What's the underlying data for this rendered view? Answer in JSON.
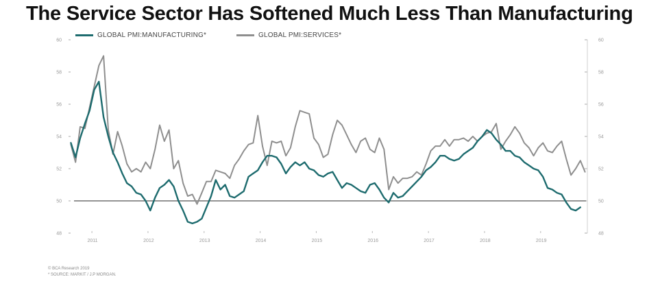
{
  "title": "The Service Sector Has Softened Much Less Than Manufacturing",
  "footer": {
    "copyright": "© BCA Research 2019",
    "source": "* SOURCE: MARKIT / J.P MORGAN."
  },
  "colors": {
    "manufacturing": "#1d6b6e",
    "services": "#8e8e8e",
    "reference_line": "#555555",
    "tick_text": "#999999"
  },
  "chart_data": {
    "type": "line",
    "title": "The Service Sector Has Softened Much Less Than Manufacturing",
    "xlabel": "",
    "ylabel": "",
    "x_range": [
      "2010-08",
      "2019-08"
    ],
    "ylim": [
      48,
      60
    ],
    "y_ticks": [
      48,
      50,
      52,
      54,
      56,
      58,
      60
    ],
    "x_tick_labels": [
      "2011",
      "2012",
      "2013",
      "2014",
      "2015",
      "2016",
      "2017",
      "2018",
      "2019"
    ],
    "reference_line": 50,
    "grid": false,
    "legend_position": "top-left",
    "dual_y_axis": true,
    "series": [
      {
        "name": "GLOBAL PMI:MANUFACTURING*",
        "points": [
          [
            "2010-08",
            53.6
          ],
          [
            "2010-09",
            52.7
          ],
          [
            "2010-10",
            53.9
          ],
          [
            "2010-11",
            54.8
          ],
          [
            "2010-12",
            55.6
          ],
          [
            "2011-01",
            56.9
          ],
          [
            "2011-02",
            57.4
          ],
          [
            "2011-03",
            55.2
          ],
          [
            "2011-04",
            54.0
          ],
          [
            "2011-05",
            53.0
          ],
          [
            "2011-06",
            52.4
          ],
          [
            "2011-07",
            51.7
          ],
          [
            "2011-08",
            51.1
          ],
          [
            "2011-09",
            50.9
          ],
          [
            "2011-10",
            50.5
          ],
          [
            "2011-11",
            50.4
          ],
          [
            "2011-12",
            50.0
          ],
          [
            "2012-01",
            49.4
          ],
          [
            "2012-02",
            50.2
          ],
          [
            "2012-03",
            50.8
          ],
          [
            "2012-04",
            51.0
          ],
          [
            "2012-05",
            51.3
          ],
          [
            "2012-06",
            50.9
          ],
          [
            "2012-07",
            50.0
          ],
          [
            "2012-08",
            49.4
          ],
          [
            "2012-09",
            48.7
          ],
          [
            "2012-10",
            48.6
          ],
          [
            "2012-11",
            48.7
          ],
          [
            "2012-12",
            48.9
          ],
          [
            "2013-01",
            49.6
          ],
          [
            "2013-02",
            50.3
          ],
          [
            "2013-03",
            51.3
          ],
          [
            "2013-04",
            50.7
          ],
          [
            "2013-05",
            51.0
          ],
          [
            "2013-06",
            50.3
          ],
          [
            "2013-07",
            50.2
          ],
          [
            "2013-08",
            50.4
          ],
          [
            "2013-09",
            50.6
          ],
          [
            "2013-10",
            51.5
          ],
          [
            "2013-11",
            51.7
          ],
          [
            "2013-12",
            51.9
          ],
          [
            "2014-01",
            52.4
          ],
          [
            "2014-02",
            52.8
          ],
          [
            "2014-03",
            52.8
          ],
          [
            "2014-04",
            52.7
          ],
          [
            "2014-05",
            52.3
          ],
          [
            "2014-06",
            51.7
          ],
          [
            "2014-07",
            52.1
          ],
          [
            "2014-08",
            52.4
          ],
          [
            "2014-09",
            52.2
          ],
          [
            "2014-10",
            52.4
          ],
          [
            "2014-11",
            52.0
          ],
          [
            "2014-12",
            51.9
          ],
          [
            "2015-01",
            51.6
          ],
          [
            "2015-02",
            51.5
          ],
          [
            "2015-03",
            51.7
          ],
          [
            "2015-04",
            51.8
          ],
          [
            "2015-05",
            51.3
          ],
          [
            "2015-06",
            50.8
          ],
          [
            "2015-07",
            51.1
          ],
          [
            "2015-08",
            51.0
          ],
          [
            "2015-09",
            50.8
          ],
          [
            "2015-10",
            50.6
          ],
          [
            "2015-11",
            50.5
          ],
          [
            "2015-12",
            51.0
          ],
          [
            "2016-01",
            51.1
          ],
          [
            "2016-02",
            50.7
          ],
          [
            "2016-03",
            50.2
          ],
          [
            "2016-04",
            49.9
          ],
          [
            "2016-05",
            50.5
          ],
          [
            "2016-06",
            50.2
          ],
          [
            "2016-07",
            50.3
          ],
          [
            "2016-08",
            50.6
          ],
          [
            "2016-09",
            50.9
          ],
          [
            "2016-10",
            51.2
          ],
          [
            "2016-11",
            51.5
          ],
          [
            "2016-12",
            51.9
          ],
          [
            "2017-01",
            52.1
          ],
          [
            "2017-02",
            52.4
          ],
          [
            "2017-03",
            52.8
          ],
          [
            "2017-04",
            52.8
          ],
          [
            "2017-05",
            52.6
          ],
          [
            "2017-06",
            52.5
          ],
          [
            "2017-07",
            52.6
          ],
          [
            "2017-08",
            52.9
          ],
          [
            "2017-09",
            53.1
          ],
          [
            "2017-10",
            53.3
          ],
          [
            "2017-11",
            53.7
          ],
          [
            "2017-12",
            54.0
          ],
          [
            "2018-01",
            54.4
          ],
          [
            "2018-02",
            54.2
          ],
          [
            "2018-03",
            53.8
          ],
          [
            "2018-04",
            53.5
          ],
          [
            "2018-05",
            53.1
          ],
          [
            "2018-06",
            53.1
          ],
          [
            "2018-07",
            52.8
          ],
          [
            "2018-08",
            52.7
          ],
          [
            "2018-09",
            52.4
          ],
          [
            "2018-10",
            52.2
          ],
          [
            "2018-11",
            52.0
          ],
          [
            "2018-12",
            51.9
          ],
          [
            "2019-01",
            51.5
          ],
          [
            "2019-02",
            50.8
          ],
          [
            "2019-03",
            50.7
          ],
          [
            "2019-04",
            50.5
          ],
          [
            "2019-05",
            50.4
          ],
          [
            "2019-06",
            49.9
          ],
          [
            "2019-07",
            49.5
          ],
          [
            "2019-08",
            49.4
          ],
          [
            "2019-09",
            49.6
          ]
        ]
      },
      {
        "name": "GLOBAL PMI:SERVICES*",
        "points": [
          [
            "2010-08",
            53.5
          ],
          [
            "2010-09",
            52.4
          ],
          [
            "2010-10",
            54.6
          ],
          [
            "2010-11",
            54.5
          ],
          [
            "2010-12",
            55.8
          ],
          [
            "2011-01",
            57.1
          ],
          [
            "2011-02",
            58.4
          ],
          [
            "2011-03",
            59.0
          ],
          [
            "2011-04",
            54.4
          ],
          [
            "2011-05",
            52.9
          ],
          [
            "2011-06",
            54.3
          ],
          [
            "2011-07",
            53.4
          ],
          [
            "2011-08",
            52.3
          ],
          [
            "2011-09",
            51.8
          ],
          [
            "2011-10",
            52.0
          ],
          [
            "2011-11",
            51.8
          ],
          [
            "2011-12",
            52.4
          ],
          [
            "2012-01",
            52.0
          ],
          [
            "2012-02",
            53.2
          ],
          [
            "2012-03",
            54.7
          ],
          [
            "2012-04",
            53.7
          ],
          [
            "2012-05",
            54.4
          ],
          [
            "2012-06",
            52.0
          ],
          [
            "2012-07",
            52.5
          ],
          [
            "2012-08",
            51.1
          ],
          [
            "2012-09",
            50.3
          ],
          [
            "2012-10",
            50.4
          ],
          [
            "2012-11",
            49.8
          ],
          [
            "2012-12",
            50.5
          ],
          [
            "2013-01",
            51.2
          ],
          [
            "2013-02",
            51.2
          ],
          [
            "2013-03",
            51.9
          ],
          [
            "2013-04",
            51.8
          ],
          [
            "2013-05",
            51.7
          ],
          [
            "2013-06",
            51.4
          ],
          [
            "2013-07",
            52.2
          ],
          [
            "2013-08",
            52.6
          ],
          [
            "2013-09",
            53.1
          ],
          [
            "2013-10",
            53.5
          ],
          [
            "2013-11",
            53.6
          ],
          [
            "2013-12",
            55.3
          ],
          [
            "2014-01",
            53.4
          ],
          [
            "2014-02",
            52.2
          ],
          [
            "2014-03",
            53.7
          ],
          [
            "2014-04",
            53.6
          ],
          [
            "2014-05",
            53.7
          ],
          [
            "2014-06",
            52.8
          ],
          [
            "2014-07",
            53.3
          ],
          [
            "2014-08",
            54.6
          ],
          [
            "2014-09",
            55.6
          ],
          [
            "2014-10",
            55.5
          ],
          [
            "2014-11",
            55.4
          ],
          [
            "2014-12",
            53.9
          ],
          [
            "2015-01",
            53.5
          ],
          [
            "2015-02",
            52.7
          ],
          [
            "2015-03",
            52.9
          ],
          [
            "2015-04",
            54.1
          ],
          [
            "2015-05",
            55.0
          ],
          [
            "2015-06",
            54.7
          ],
          [
            "2015-07",
            54.1
          ],
          [
            "2015-08",
            53.5
          ],
          [
            "2015-09",
            53.0
          ],
          [
            "2015-10",
            53.7
          ],
          [
            "2015-11",
            53.9
          ],
          [
            "2015-12",
            53.2
          ],
          [
            "2016-01",
            53.0
          ],
          [
            "2016-02",
            53.9
          ],
          [
            "2016-03",
            53.2
          ],
          [
            "2016-04",
            50.7
          ],
          [
            "2016-05",
            51.5
          ],
          [
            "2016-06",
            51.1
          ],
          [
            "2016-07",
            51.4
          ],
          [
            "2016-08",
            51.4
          ],
          [
            "2016-09",
            51.5
          ],
          [
            "2016-10",
            51.8
          ],
          [
            "2016-11",
            51.6
          ],
          [
            "2016-12",
            52.3
          ],
          [
            "2017-01",
            53.1
          ],
          [
            "2017-02",
            53.4
          ],
          [
            "2017-03",
            53.4
          ],
          [
            "2017-04",
            53.8
          ],
          [
            "2017-05",
            53.4
          ],
          [
            "2017-06",
            53.8
          ],
          [
            "2017-07",
            53.8
          ],
          [
            "2017-08",
            53.9
          ],
          [
            "2017-09",
            53.7
          ],
          [
            "2017-10",
            54.0
          ],
          [
            "2017-11",
            53.7
          ],
          [
            "2017-12",
            54.0
          ],
          [
            "2018-01",
            54.2
          ],
          [
            "2018-02",
            54.3
          ],
          [
            "2018-03",
            54.8
          ],
          [
            "2018-04",
            53.2
          ],
          [
            "2018-05",
            53.7
          ],
          [
            "2018-06",
            54.1
          ],
          [
            "2018-07",
            54.6
          ],
          [
            "2018-08",
            54.2
          ],
          [
            "2018-09",
            53.6
          ],
          [
            "2018-10",
            53.3
          ],
          [
            "2018-11",
            52.8
          ],
          [
            "2018-12",
            53.3
          ],
          [
            "2019-01",
            53.6
          ],
          [
            "2019-02",
            53.1
          ],
          [
            "2019-03",
            53.0
          ],
          [
            "2019-04",
            53.4
          ],
          [
            "2019-05",
            53.7
          ],
          [
            "2019-06",
            52.6
          ],
          [
            "2019-07",
            51.6
          ],
          [
            "2019-08",
            52.0
          ],
          [
            "2019-09",
            52.5
          ],
          [
            "2019-10",
            51.8
          ]
        ]
      }
    ]
  }
}
